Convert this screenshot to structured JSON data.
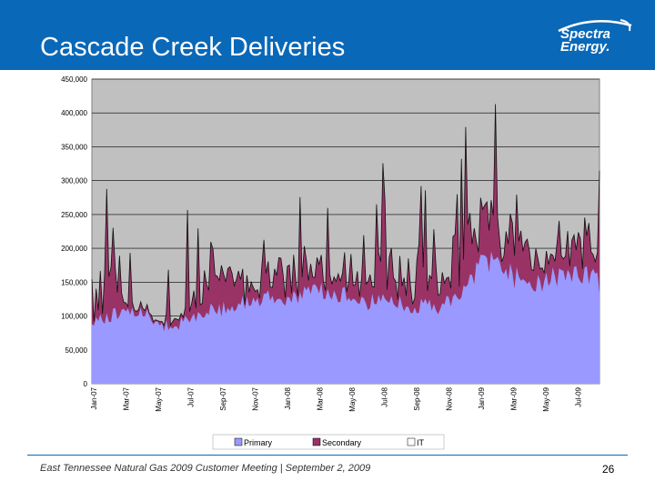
{
  "slide": {
    "title": "Cascade Creek Deliveries",
    "footer": "East Tennessee Natural Gas 2009 Customer Meeting | September 2, 2009",
    "page_number": "26",
    "logo_line1": "Spectra",
    "logo_line2": "Energy."
  },
  "colors": {
    "header": "#0a68b8",
    "plot_bg": "#c0c0c0",
    "primary": "#9999ff",
    "secondary": "#993366",
    "it": "#ffffff"
  },
  "chart_data": {
    "type": "area",
    "title": "Cascade Creek Deliveries",
    "xlabel": "",
    "ylabel": "",
    "ylim": [
      0,
      450000
    ],
    "yticks": [
      0,
      50000,
      100000,
      150000,
      200000,
      250000,
      300000,
      350000,
      400000,
      450000
    ],
    "ytick_labels": [
      "0",
      "50,000",
      "100,000",
      "150,000",
      "200,000",
      "250,000",
      "300,000",
      "350,000",
      "400,000",
      "450,000"
    ],
    "stacked": true,
    "grid": true,
    "legend_position": "bottom",
    "x_labels": [
      "Jan-07",
      "Mar-07",
      "May-07",
      "Jul-07",
      "Sep-07",
      "Nov-07",
      "Jan-08",
      "Mar-08",
      "May-08",
      "Jul-08",
      "Sep-08",
      "Nov-08",
      "Jan-09",
      "Mar-09",
      "May-09",
      "Jul-09"
    ],
    "x": [
      "Jan-07",
      "Feb-07",
      "Mar-07",
      "Apr-07",
      "May-07",
      "Jun-07",
      "Jul-07",
      "Aug-07",
      "Sep-07",
      "Oct-07",
      "Nov-07",
      "Dec-07",
      "Jan-08",
      "Feb-08",
      "Mar-08",
      "Apr-08",
      "May-08",
      "Jun-08",
      "Jul-08",
      "Aug-08",
      "Sep-08",
      "Oct-08",
      "Nov-08",
      "Dec-08",
      "Jan-09",
      "Feb-09",
      "Mar-09",
      "Apr-09",
      "May-09",
      "Jun-09",
      "Jul-09",
      "Aug-09"
    ],
    "series": [
      {
        "name": "Primary",
        "values": [
          100000,
          98000,
          115000,
          110000,
          90000,
          88000,
          100000,
          108000,
          115000,
          120000,
          125000,
          130000,
          132000,
          135000,
          140000,
          138000,
          130000,
          125000,
          125000,
          120000,
          118000,
          115000,
          125000,
          150000,
          190000,
          175000,
          160000,
          155000,
          160000,
          165000,
          170000,
          155000
        ]
      },
      {
        "name": "Secondary",
        "values": [
          15000,
          60000,
          10000,
          8000,
          5000,
          8000,
          12000,
          60000,
          50000,
          30000,
          35000,
          40000,
          45000,
          35000,
          30000,
          25000,
          45000,
          40000,
          55000,
          50000,
          50000,
          40000,
          55000,
          60000,
          50000,
          45000,
          45000,
          40000,
          45000,
          40000,
          50000,
          70000
        ]
      },
      {
        "name": "IT",
        "values": [
          0,
          0,
          0,
          0,
          0,
          0,
          0,
          0,
          0,
          0,
          0,
          0,
          0,
          0,
          0,
          0,
          0,
          0,
          0,
          0,
          0,
          0,
          0,
          0,
          0,
          0,
          0,
          0,
          0,
          0,
          0,
          0
        ]
      }
    ]
  }
}
